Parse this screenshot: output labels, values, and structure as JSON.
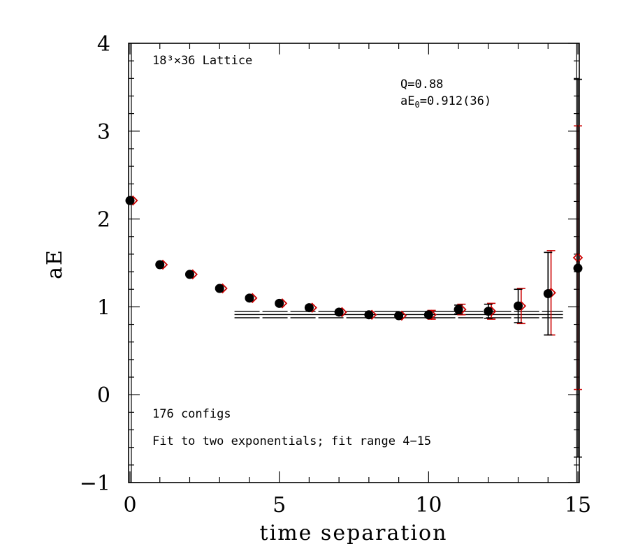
{
  "chart_data": {
    "type": "scatter",
    "xlabel": "time separation",
    "ylabel": "aE",
    "xlim": [
      0,
      15
    ],
    "ylim": [
      -1,
      4
    ],
    "x_ticks": [
      0,
      5,
      10,
      15
    ],
    "y_ticks": [
      -1,
      0,
      1,
      2,
      3,
      4
    ],
    "x_tick_labels": [
      "0",
      "5",
      "10",
      "15"
    ],
    "y_tick_labels": [
      "−1",
      "0",
      "1",
      "2",
      "3",
      "4"
    ],
    "grid": false,
    "annotations": {
      "lattice": "18³×36 Lattice",
      "q": "Q=0.88",
      "energy_prefix": "aE",
      "energy_sub": "0",
      "energy_value": "=0.912(36)",
      "configs": "176 configs",
      "fit": "Fit to two exponentials; fit range 4−15"
    },
    "series": [
      {
        "marker": "filled-circle",
        "color": "#000000",
        "x": [
          0,
          1,
          2,
          3,
          4,
          5,
          6,
          7,
          8,
          9,
          10,
          11,
          12,
          13,
          14,
          15
        ],
        "y": [
          2.21,
          1.48,
          1.37,
          1.21,
          1.1,
          1.04,
          0.99,
          0.94,
          0.91,
          0.9,
          0.91,
          0.97,
          0.95,
          1.01,
          1.15,
          1.44
        ],
        "err": [
          0.02,
          0.02,
          0.02,
          0.02,
          0.02,
          0.02,
          0.02,
          0.02,
          0.02,
          0.03,
          0.04,
          0.05,
          0.08,
          0.19,
          0.47,
          2.15
        ]
      },
      {
        "marker": "open-diamond",
        "color": "#cc0000",
        "x": [
          0.1,
          1.1,
          2.1,
          3.1,
          4.1,
          5.1,
          6.1,
          7.1,
          8.1,
          9.1,
          10.1,
          11.1,
          12.1,
          13.1,
          14.1,
          15.0
        ],
        "y": [
          2.21,
          1.48,
          1.37,
          1.21,
          1.1,
          1.04,
          0.99,
          0.94,
          0.91,
          0.9,
          0.91,
          0.97,
          0.95,
          1.01,
          1.16,
          1.56
        ],
        "err": [
          0.02,
          0.02,
          0.02,
          0.02,
          0.02,
          0.02,
          0.02,
          0.02,
          0.02,
          0.03,
          0.05,
          0.06,
          0.09,
          0.2,
          0.48,
          1.5
        ]
      }
    ],
    "fit_band": {
      "x_range": [
        3.5,
        14.5
      ],
      "center": 0.912,
      "error": 0.036
    }
  }
}
